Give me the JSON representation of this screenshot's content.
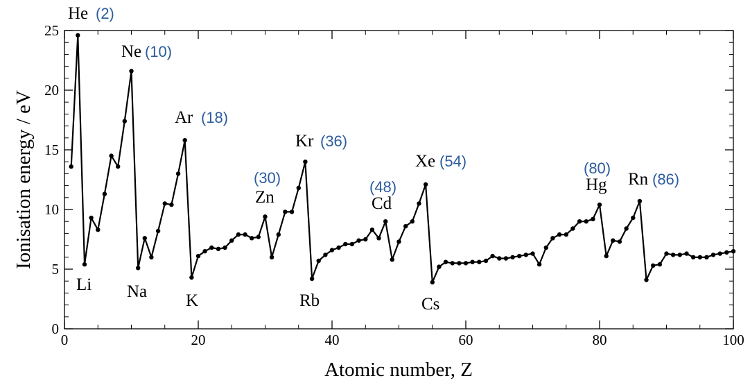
{
  "chart_data": {
    "type": "line",
    "title": "",
    "xlabel": "Atomic number, Z",
    "ylabel": "Ionisation energy / eV",
    "xlim": [
      0,
      100
    ],
    "ylim": [
      0,
      25
    ],
    "x_ticks": [
      0,
      20,
      40,
      60,
      80,
      100
    ],
    "y_ticks": [
      0,
      5,
      10,
      15,
      20,
      25
    ],
    "grid": false,
    "series": [
      {
        "color": "#000000",
        "x": [
          1,
          2,
          3,
          4,
          5,
          6,
          7,
          8,
          9,
          10,
          11,
          12,
          13,
          14,
          15,
          16,
          17,
          18,
          19,
          20,
          21,
          22,
          23,
          24,
          25,
          26,
          27,
          28,
          29,
          30,
          31,
          32,
          33,
          34,
          35,
          36,
          37,
          38,
          39,
          40,
          41,
          42,
          43,
          44,
          45,
          46,
          47,
          48,
          49,
          50,
          51,
          52,
          53,
          54,
          55,
          56,
          57,
          58,
          59,
          60,
          61,
          62,
          63,
          64,
          65,
          66,
          67,
          68,
          69,
          70,
          71,
          72,
          73,
          74,
          75,
          76,
          77,
          78,
          79,
          80,
          81,
          82,
          83,
          84,
          85,
          86,
          87,
          88,
          89,
          90,
          91,
          92,
          93,
          94,
          95,
          96,
          97,
          98,
          99,
          100
        ],
        "y": [
          13.6,
          24.6,
          5.4,
          9.3,
          8.3,
          11.3,
          14.5,
          13.6,
          17.4,
          21.6,
          5.1,
          7.6,
          6.0,
          8.2,
          10.5,
          10.4,
          13.0,
          15.8,
          4.3,
          6.1,
          6.5,
          6.8,
          6.7,
          6.8,
          7.4,
          7.9,
          7.9,
          7.6,
          7.7,
          9.4,
          6.0,
          7.9,
          9.8,
          9.8,
          11.8,
          14.0,
          4.2,
          5.7,
          6.2,
          6.6,
          6.8,
          7.1,
          7.1,
          7.4,
          7.5,
          8.3,
          7.6,
          9.0,
          5.8,
          7.3,
          8.6,
          9.0,
          10.5,
          12.1,
          3.9,
          5.2,
          5.6,
          5.5,
          5.5,
          5.5,
          5.6,
          5.6,
          5.7,
          6.1,
          5.9,
          5.9,
          6.0,
          6.1,
          6.2,
          6.3,
          5.4,
          6.8,
          7.6,
          7.9,
          7.9,
          8.4,
          9.0,
          9.0,
          9.2,
          10.4,
          6.1,
          7.4,
          7.3,
          8.4,
          9.3,
          10.7,
          4.1,
          5.3,
          5.4,
          6.3,
          6.2,
          6.2,
          6.3,
          6.0,
          6.0,
          6.0,
          6.2,
          6.3,
          6.4,
          6.5
        ]
      }
    ],
    "annotations": [
      {
        "symbol": "He",
        "number": "(2)",
        "z": 2
      },
      {
        "symbol": "Ne",
        "number": "(10)",
        "z": 10
      },
      {
        "symbol": "Ar",
        "number": "(18)",
        "z": 18
      },
      {
        "symbol": "Kr",
        "number": "(36)",
        "z": 36
      },
      {
        "symbol": "Xe",
        "number": "(54)",
        "z": 54
      },
      {
        "symbol": "Rn",
        "number": "(86)",
        "z": 86
      },
      {
        "symbol": "Zn",
        "number": "(30)",
        "z": 30
      },
      {
        "symbol": "Cd",
        "number": "(48)",
        "z": 48
      },
      {
        "symbol": "Hg",
        "number": "(80)",
        "z": 80
      },
      {
        "symbol": "Li",
        "z": 3
      },
      {
        "symbol": "Na",
        "z": 11
      },
      {
        "symbol": "K",
        "z": 19
      },
      {
        "symbol": "Rb",
        "z": 37
      },
      {
        "symbol": "Cs",
        "z": 55
      }
    ]
  }
}
